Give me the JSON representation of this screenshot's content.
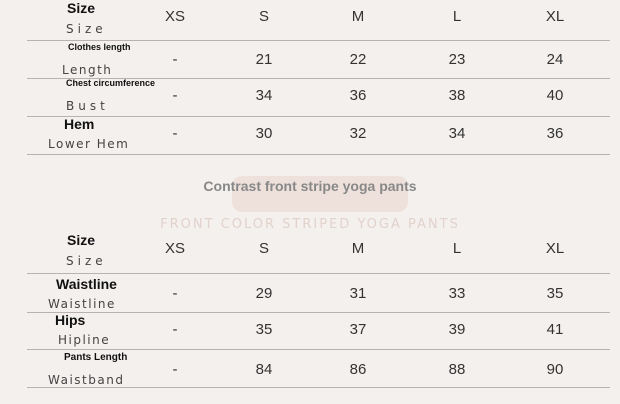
{
  "sizes": [
    "XS",
    "S",
    "M",
    "L",
    "XL"
  ],
  "top_table": {
    "header": {
      "label": "Size",
      "sub": "Size"
    },
    "rows": [
      {
        "label": "Clothes length",
        "sub": "Length",
        "values": [
          "-",
          "21",
          "22",
          "23",
          "24"
        ]
      },
      {
        "label": "Chest circumference",
        "sub": "Bust",
        "values": [
          "-",
          "34",
          "36",
          "38",
          "40"
        ]
      },
      {
        "label": "Hem",
        "sub": "Lower Hem",
        "values": [
          "-",
          "30",
          "32",
          "34",
          "36"
        ]
      }
    ]
  },
  "section": {
    "title": "Contrast front stripe yoga pants",
    "subtitle": "FRONT COLOR STRIPED YOGA PANTS"
  },
  "bottom_table": {
    "header": {
      "label": "Size",
      "sub": "Size"
    },
    "rows": [
      {
        "label": "Waistline",
        "sub": "Waistline",
        "values": [
          "-",
          "29",
          "31",
          "33",
          "35"
        ]
      },
      {
        "label": "Hips",
        "sub": "Hipline",
        "values": [
          "-",
          "35",
          "37",
          "39",
          "41"
        ]
      },
      {
        "label": "Pants Length",
        "sub": "Waistband",
        "values": [
          "-",
          "84",
          "86",
          "88",
          "90"
        ]
      }
    ]
  }
}
